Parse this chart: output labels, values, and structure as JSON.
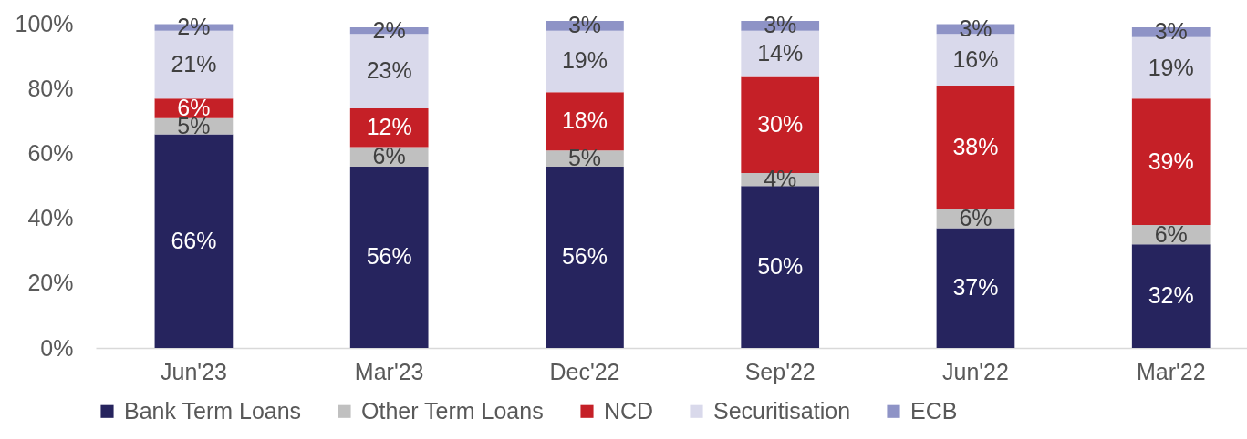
{
  "chart_data": {
    "type": "bar",
    "stacked": true,
    "categories": [
      "Jun'23",
      "Mar'23",
      "Dec'22",
      "Sep'22",
      "Jun'22",
      "Mar'22"
    ],
    "series": [
      {
        "name": "Bank Term Loans",
        "color": "#26245e",
        "values": [
          66,
          56,
          56,
          50,
          37,
          32
        ],
        "value_labels": [
          "66%",
          "56%",
          "56%",
          "50%",
          "37%",
          "32%"
        ]
      },
      {
        "name": "Other Term Loans",
        "color": "#c0c0c0",
        "values": [
          5,
          6,
          5,
          4,
          6,
          6
        ],
        "value_labels": [
          "5%",
          "6%",
          "5%",
          "4%",
          "6%",
          "6%"
        ]
      },
      {
        "name": "NCD",
        "color": "#c52027",
        "values": [
          6,
          12,
          18,
          30,
          38,
          39
        ],
        "value_labels": [
          "6%",
          "12%",
          "18%",
          "30%",
          "38%",
          "39%"
        ]
      },
      {
        "name": "Securitisation",
        "color": "#d9d9eb",
        "values": [
          21,
          23,
          19,
          14,
          16,
          19
        ],
        "value_labels": [
          "21%",
          "23%",
          "19%",
          "14%",
          "16%",
          "19%"
        ]
      },
      {
        "name": "ECB",
        "color": "#8e93c6",
        "values": [
          2,
          2,
          3,
          3,
          3,
          3
        ],
        "value_labels": [
          "2%",
          "2%",
          "3%",
          "3%",
          "3%",
          "3%"
        ]
      }
    ],
    "ylim": [
      0,
      101
    ],
    "yticks": [
      {
        "value": 0,
        "label": "0%"
      },
      {
        "value": 20,
        "label": "20%"
      },
      {
        "value": 40,
        "label": "40%"
      },
      {
        "value": 60,
        "label": "60%"
      },
      {
        "value": 80,
        "label": "80%"
      },
      {
        "value": 100,
        "label": "100%"
      }
    ],
    "legend": "bottom"
  }
}
